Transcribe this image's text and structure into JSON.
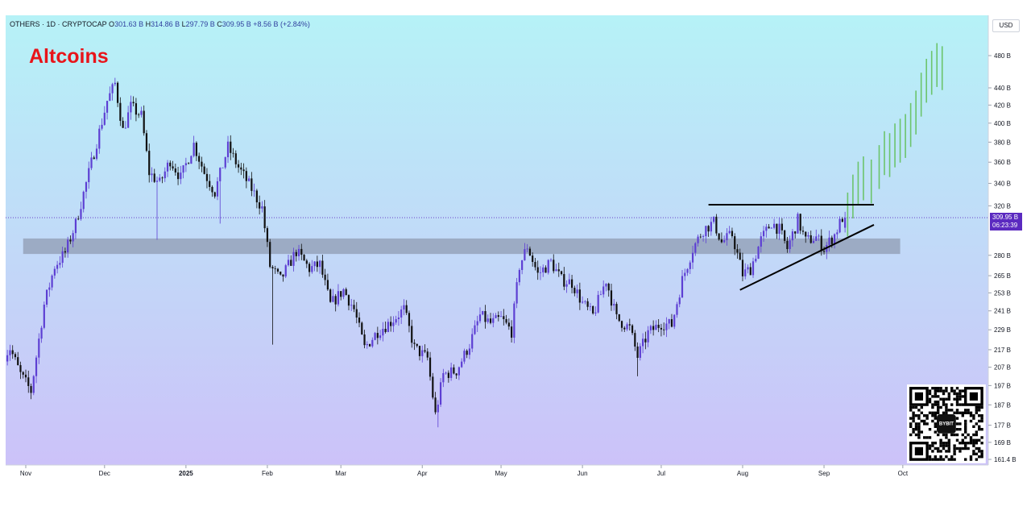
{
  "header": {
    "symbol": "OTHERS · 1D · CRYPTOCAP",
    "open_label": "O",
    "open": "301.63 B",
    "high_label": "H",
    "high": "314.86 B",
    "low_label": "L",
    "low": "297.79 B",
    "close_label": "C",
    "close": "309.95 B",
    "change": "+8.56 B (+2.84%)"
  },
  "title": "Altcoins",
  "currency": "USD",
  "price_tag": {
    "price": "309.95 B",
    "countdown": "06:23:39"
  },
  "colors": {
    "bg_top": "#b6f2f7",
    "bg_bottom": "#ccc2f9",
    "up": "#5d3fd3",
    "down": "#111111",
    "projection": "#6cc46c",
    "support_zone": "#8f9bb3",
    "tag": "#5b2ac0"
  },
  "chart_data": {
    "type": "candlestick",
    "y_scale": "log",
    "y_ticks": [
      {
        "value": 480,
        "label": "480 B"
      },
      {
        "value": 440,
        "label": "440 B"
      },
      {
        "value": 420,
        "label": "420 B"
      },
      {
        "value": 400,
        "label": "400 B"
      },
      {
        "value": 380,
        "label": "380 B"
      },
      {
        "value": 360,
        "label": "360 B"
      },
      {
        "value": 340,
        "label": "340 B"
      },
      {
        "value": 320,
        "label": "320 B"
      },
      {
        "value": 280,
        "label": "280 B"
      },
      {
        "value": 265,
        "label": "265 B"
      },
      {
        "value": 253,
        "label": "253 B"
      },
      {
        "value": 241,
        "label": "241 B"
      },
      {
        "value": 229,
        "label": "229 B"
      },
      {
        "value": 217,
        "label": "217 B"
      },
      {
        "value": 207,
        "label": "207 B"
      },
      {
        "value": 197,
        "label": "197 B"
      },
      {
        "value": 187,
        "label": "187 B"
      },
      {
        "value": 177,
        "label": "177 B"
      },
      {
        "value": 169,
        "label": "169 B"
      },
      {
        "value": 161.4,
        "label": "161.4 B"
      }
    ],
    "x_ticks": [
      {
        "date": "2024-11-01",
        "label": "Nov",
        "bold": false
      },
      {
        "date": "2024-12-01",
        "label": "Dec",
        "bold": false
      },
      {
        "date": "2025-01-01",
        "label": "2025",
        "bold": true
      },
      {
        "date": "2025-02-01",
        "label": "Feb",
        "bold": false
      },
      {
        "date": "2025-03-01",
        "label": "Mar",
        "bold": false
      },
      {
        "date": "2025-04-01",
        "label": "Apr",
        "bold": false
      },
      {
        "date": "2025-05-01",
        "label": "May",
        "bold": false
      },
      {
        "date": "2025-06-01",
        "label": "Jun",
        "bold": false
      },
      {
        "date": "2025-07-01",
        "label": "Jul",
        "bold": false
      },
      {
        "date": "2025-08-01",
        "label": "Aug",
        "bold": false
      },
      {
        "date": "2025-09-01",
        "label": "Sep",
        "bold": false
      },
      {
        "date": "2025-10-01",
        "label": "Oct",
        "bold": false
      }
    ],
    "price_path": [
      [
        "2024-10-24",
        212
      ],
      [
        "2024-10-27",
        218
      ],
      [
        "2024-10-31",
        203
      ],
      [
        "2024-11-04",
        194
      ],
      [
        "2024-11-09",
        245
      ],
      [
        "2024-11-13",
        272
      ],
      [
        "2024-11-17",
        282
      ],
      [
        "2024-11-21",
        305
      ],
      [
        "2024-11-25",
        340
      ],
      [
        "2024-11-29",
        380
      ],
      [
        "2024-12-03",
        425
      ],
      [
        "2024-12-06",
        445
      ],
      [
        "2024-12-09",
        392
      ],
      [
        "2024-12-12",
        418
      ],
      [
        "2024-12-16",
        408
      ],
      [
        "2024-12-19",
        350
      ],
      [
        "2024-12-23",
        340
      ],
      [
        "2024-12-27",
        362
      ],
      [
        "2024-12-31",
        345
      ],
      [
        "2025-01-05",
        378
      ],
      [
        "2025-01-09",
        350
      ],
      [
        "2025-01-13",
        332
      ],
      [
        "2025-01-18",
        375
      ],
      [
        "2025-01-22",
        355
      ],
      [
        "2025-01-27",
        335
      ],
      [
        "2025-01-31",
        318
      ],
      [
        "2025-02-03",
        272
      ],
      [
        "2025-02-07",
        262
      ],
      [
        "2025-02-13",
        283
      ],
      [
        "2025-02-18",
        270
      ],
      [
        "2025-02-22",
        273
      ],
      [
        "2025-02-26",
        245
      ],
      [
        "2025-03-03",
        255
      ],
      [
        "2025-03-07",
        242
      ],
      [
        "2025-03-11",
        218
      ],
      [
        "2025-03-16",
        228
      ],
      [
        "2025-03-21",
        234
      ],
      [
        "2025-03-26",
        242
      ],
      [
        "2025-03-30",
        218
      ],
      [
        "2025-04-04",
        212
      ],
      [
        "2025-04-07",
        182
      ],
      [
        "2025-04-10",
        203
      ],
      [
        "2025-04-15",
        205
      ],
      [
        "2025-04-20",
        220
      ],
      [
        "2025-04-24",
        238
      ],
      [
        "2025-04-28",
        233
      ],
      [
        "2025-05-02",
        236
      ],
      [
        "2025-05-06",
        228
      ],
      [
        "2025-05-09",
        272
      ],
      [
        "2025-05-12",
        287
      ],
      [
        "2025-05-16",
        266
      ],
      [
        "2025-05-21",
        275
      ],
      [
        "2025-05-25",
        262
      ],
      [
        "2025-05-29",
        260
      ],
      [
        "2025-06-02",
        246
      ],
      [
        "2025-06-06",
        238
      ],
      [
        "2025-06-11",
        262
      ],
      [
        "2025-06-15",
        236
      ],
      [
        "2025-06-20",
        230
      ],
      [
        "2025-06-23",
        213
      ],
      [
        "2025-06-27",
        227
      ],
      [
        "2025-07-02",
        233
      ],
      [
        "2025-07-06",
        232
      ],
      [
        "2025-07-10",
        262
      ],
      [
        "2025-07-14",
        285
      ],
      [
        "2025-07-18",
        300
      ],
      [
        "2025-07-22",
        306
      ],
      [
        "2025-07-25",
        290
      ],
      [
        "2025-07-29",
        296
      ],
      [
        "2025-08-02",
        266
      ],
      [
        "2025-08-05",
        270
      ],
      [
        "2025-08-09",
        292
      ],
      [
        "2025-08-13",
        306
      ],
      [
        "2025-08-16",
        300
      ],
      [
        "2025-08-19",
        285
      ],
      [
        "2025-08-23",
        308
      ],
      [
        "2025-08-26",
        291
      ],
      [
        "2025-08-30",
        294
      ],
      [
        "2025-09-02",
        285
      ],
      [
        "2025-09-06",
        296
      ],
      [
        "2025-09-09",
        310
      ]
    ],
    "wicks": [
      {
        "date": "2024-12-21",
        "low": 292
      },
      {
        "date": "2025-01-14",
        "low": 305
      },
      {
        "date": "2025-02-03",
        "low": 220
      },
      {
        "date": "2025-04-07",
        "low": 176
      },
      {
        "date": "2025-06-22",
        "low": 202
      }
    ],
    "last_candle": {
      "date": "2025-09-09",
      "open": 301.63,
      "high": 314.86,
      "low": 297.79,
      "close": 309.95
    },
    "support_zone": {
      "x_start": "2024-10-31",
      "x_end": "2025-09-30",
      "y_low": 281,
      "y_high": 293
    },
    "resistance_line": {
      "x_start": "2025-07-19",
      "x_end": "2025-09-20",
      "y": 321
    },
    "trendline": {
      "x_start": "2025-07-31",
      "y_start": 255,
      "x_end": "2025-09-20",
      "y_end": 304
    },
    "last_price_line": 309.95,
    "projection": [
      [
        "2025-09-10",
        322
      ],
      [
        "2025-09-12",
        338
      ],
      [
        "2025-09-14",
        350
      ],
      [
        "2025-09-16",
        355
      ],
      [
        "2025-09-19",
        352
      ],
      [
        "2025-09-22",
        366
      ],
      [
        "2025-09-24",
        380
      ],
      [
        "2025-09-26",
        378
      ],
      [
        "2025-09-28",
        388
      ],
      [
        "2025-09-30",
        393
      ],
      [
        "2025-10-02",
        398
      ],
      [
        "2025-10-04",
        410
      ],
      [
        "2025-10-06",
        424
      ],
      [
        "2025-10-08",
        445
      ],
      [
        "2025-10-10",
        462
      ],
      [
        "2025-10-12",
        472
      ],
      [
        "2025-10-14",
        482
      ],
      [
        "2025-10-16",
        478
      ]
    ]
  },
  "qr": {
    "label": "BYBIT"
  }
}
